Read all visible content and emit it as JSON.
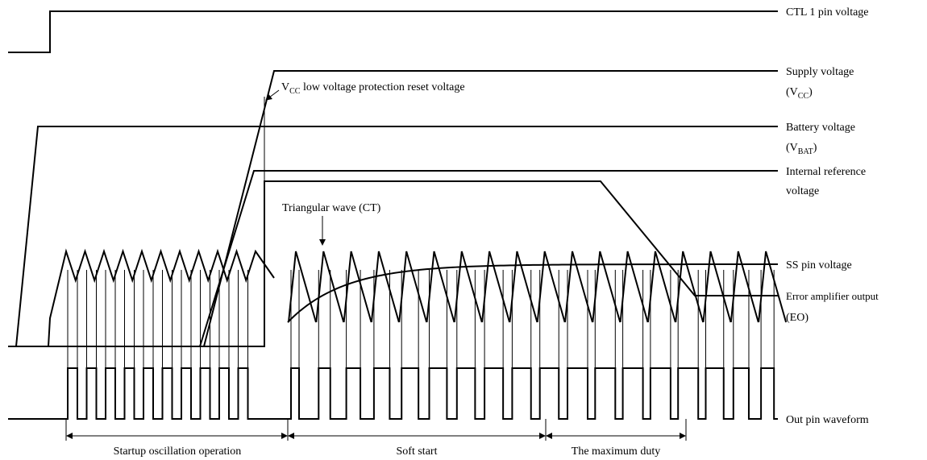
{
  "labels": {
    "ctl1": "CTL 1 pin voltage",
    "supply": {
      "line1": "Supply voltage",
      "open": "(V",
      "sub": "CC",
      "close": ")"
    },
    "battery": {
      "line1": "Battery voltage",
      "open": "(V",
      "sub": "BAT",
      "close": ")"
    },
    "internal_ref": {
      "line1": "Internal reference",
      "line2": "voltage"
    },
    "ss": "SS pin voltage",
    "eo": {
      "line1": "Error amplifier output",
      "line2": "(EO)"
    },
    "out": "Out pin waveform"
  },
  "annotations": {
    "vcc_reset": {
      "v": "V",
      "sub": "CC",
      "rest": " low voltage protection reset voltage"
    },
    "triangular": "Triangular wave (CT)"
  },
  "phases": [
    "Startup oscillation operation",
    "Soft start",
    "The maximum duty"
  ]
}
